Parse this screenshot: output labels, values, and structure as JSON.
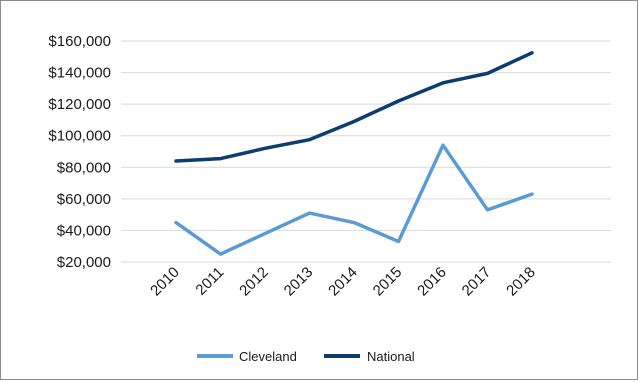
{
  "chart_data": {
    "type": "line",
    "title": "",
    "xlabel": "",
    "ylabel": "",
    "x": [
      "2010",
      "2011",
      "2012",
      "2013",
      "2014",
      "2015",
      "2016",
      "2017",
      "2018"
    ],
    "ylim": [
      20000,
      160000
    ],
    "yticks": [
      20000,
      40000,
      60000,
      80000,
      100000,
      120000,
      140000,
      160000
    ],
    "ytick_labels": [
      "$20,000",
      "$40,000",
      "$60,000",
      "$80,000",
      "$100,000",
      "$120,000",
      "$140,000",
      "$160,000"
    ],
    "grid": "horizontal",
    "legend_position": "bottom",
    "series": [
      {
        "name": "Cleveland",
        "color": "#5b9bd5",
        "values": [
          45000,
          25000,
          38000,
          51000,
          45000,
          33000,
          94000,
          53000,
          63000
        ]
      },
      {
        "name": "National",
        "color": "#0b3d6e",
        "values": [
          84000,
          85500,
          92000,
          97500,
          109000,
          122000,
          133500,
          139500,
          152500
        ]
      }
    ]
  }
}
